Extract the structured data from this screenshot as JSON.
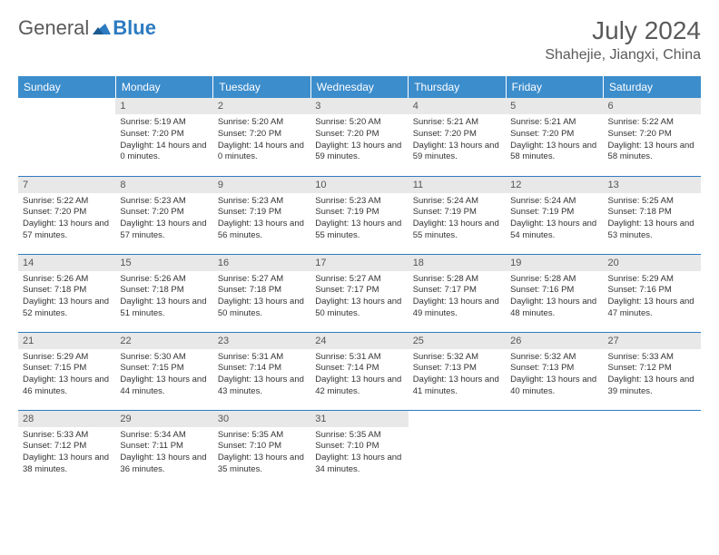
{
  "logo": {
    "text1": "General",
    "text2": "Blue"
  },
  "title": "July 2024",
  "location": "Shahejie, Jiangxi, China",
  "colors": {
    "header_bg": "#3c8dcc",
    "header_text": "#ffffff",
    "border": "#2d7bc0",
    "daynum_bg": "#e8e8e8",
    "text": "#333333",
    "title_color": "#5a5a5a"
  },
  "dayHeaders": [
    "Sunday",
    "Monday",
    "Tuesday",
    "Wednesday",
    "Thursday",
    "Friday",
    "Saturday"
  ],
  "weeks": [
    [
      null,
      {
        "n": "1",
        "sr": "5:19 AM",
        "ss": "7:20 PM",
        "dl": "14 hours and 0 minutes."
      },
      {
        "n": "2",
        "sr": "5:20 AM",
        "ss": "7:20 PM",
        "dl": "14 hours and 0 minutes."
      },
      {
        "n": "3",
        "sr": "5:20 AM",
        "ss": "7:20 PM",
        "dl": "13 hours and 59 minutes."
      },
      {
        "n": "4",
        "sr": "5:21 AM",
        "ss": "7:20 PM",
        "dl": "13 hours and 59 minutes."
      },
      {
        "n": "5",
        "sr": "5:21 AM",
        "ss": "7:20 PM",
        "dl": "13 hours and 58 minutes."
      },
      {
        "n": "6",
        "sr": "5:22 AM",
        "ss": "7:20 PM",
        "dl": "13 hours and 58 minutes."
      }
    ],
    [
      {
        "n": "7",
        "sr": "5:22 AM",
        "ss": "7:20 PM",
        "dl": "13 hours and 57 minutes."
      },
      {
        "n": "8",
        "sr": "5:23 AM",
        "ss": "7:20 PM",
        "dl": "13 hours and 57 minutes."
      },
      {
        "n": "9",
        "sr": "5:23 AM",
        "ss": "7:19 PM",
        "dl": "13 hours and 56 minutes."
      },
      {
        "n": "10",
        "sr": "5:23 AM",
        "ss": "7:19 PM",
        "dl": "13 hours and 55 minutes."
      },
      {
        "n": "11",
        "sr": "5:24 AM",
        "ss": "7:19 PM",
        "dl": "13 hours and 55 minutes."
      },
      {
        "n": "12",
        "sr": "5:24 AM",
        "ss": "7:19 PM",
        "dl": "13 hours and 54 minutes."
      },
      {
        "n": "13",
        "sr": "5:25 AM",
        "ss": "7:18 PM",
        "dl": "13 hours and 53 minutes."
      }
    ],
    [
      {
        "n": "14",
        "sr": "5:26 AM",
        "ss": "7:18 PM",
        "dl": "13 hours and 52 minutes."
      },
      {
        "n": "15",
        "sr": "5:26 AM",
        "ss": "7:18 PM",
        "dl": "13 hours and 51 minutes."
      },
      {
        "n": "16",
        "sr": "5:27 AM",
        "ss": "7:18 PM",
        "dl": "13 hours and 50 minutes."
      },
      {
        "n": "17",
        "sr": "5:27 AM",
        "ss": "7:17 PM",
        "dl": "13 hours and 50 minutes."
      },
      {
        "n": "18",
        "sr": "5:28 AM",
        "ss": "7:17 PM",
        "dl": "13 hours and 49 minutes."
      },
      {
        "n": "19",
        "sr": "5:28 AM",
        "ss": "7:16 PM",
        "dl": "13 hours and 48 minutes."
      },
      {
        "n": "20",
        "sr": "5:29 AM",
        "ss": "7:16 PM",
        "dl": "13 hours and 47 minutes."
      }
    ],
    [
      {
        "n": "21",
        "sr": "5:29 AM",
        "ss": "7:15 PM",
        "dl": "13 hours and 46 minutes."
      },
      {
        "n": "22",
        "sr": "5:30 AM",
        "ss": "7:15 PM",
        "dl": "13 hours and 44 minutes."
      },
      {
        "n": "23",
        "sr": "5:31 AM",
        "ss": "7:14 PM",
        "dl": "13 hours and 43 minutes."
      },
      {
        "n": "24",
        "sr": "5:31 AM",
        "ss": "7:14 PM",
        "dl": "13 hours and 42 minutes."
      },
      {
        "n": "25",
        "sr": "5:32 AM",
        "ss": "7:13 PM",
        "dl": "13 hours and 41 minutes."
      },
      {
        "n": "26",
        "sr": "5:32 AM",
        "ss": "7:13 PM",
        "dl": "13 hours and 40 minutes."
      },
      {
        "n": "27",
        "sr": "5:33 AM",
        "ss": "7:12 PM",
        "dl": "13 hours and 39 minutes."
      }
    ],
    [
      {
        "n": "28",
        "sr": "5:33 AM",
        "ss": "7:12 PM",
        "dl": "13 hours and 38 minutes."
      },
      {
        "n": "29",
        "sr": "5:34 AM",
        "ss": "7:11 PM",
        "dl": "13 hours and 36 minutes."
      },
      {
        "n": "30",
        "sr": "5:35 AM",
        "ss": "7:10 PM",
        "dl": "13 hours and 35 minutes."
      },
      {
        "n": "31",
        "sr": "5:35 AM",
        "ss": "7:10 PM",
        "dl": "13 hours and 34 minutes."
      },
      null,
      null,
      null
    ]
  ],
  "labels": {
    "sunrise": "Sunrise:",
    "sunset": "Sunset:",
    "daylight": "Daylight:"
  }
}
